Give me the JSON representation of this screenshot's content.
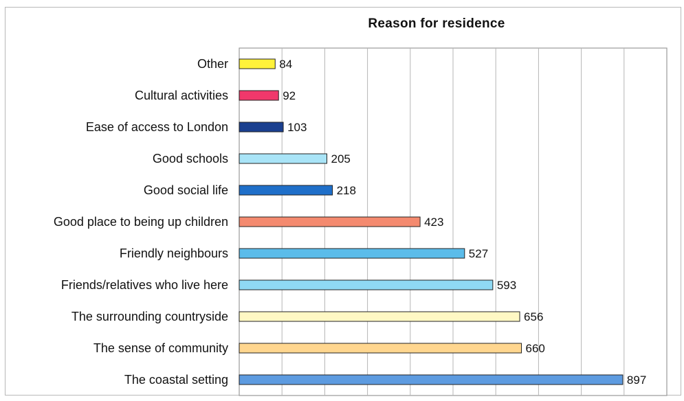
{
  "chart_data": {
    "type": "bar",
    "orientation": "horizontal",
    "title": "Reason for residence",
    "xlabel": "",
    "ylabel": "",
    "xlim": [
      0,
      1000
    ],
    "grid": true,
    "legend": "none",
    "categories": [
      "Other",
      "Cultural activities",
      "Ease of access to London",
      "Good schools",
      "Good social life",
      "Good place to being up children",
      "Friendly neighbours",
      "Friends/relatives who live here",
      "The surrounding countryside",
      "The sense of community",
      "The coastal setting"
    ],
    "values": [
      84,
      92,
      103,
      205,
      218,
      423,
      527,
      593,
      656,
      660,
      897
    ],
    "colors": [
      "#fff23a",
      "#f0386b",
      "#1a3f8f",
      "#a9e4f7",
      "#1f6fc9",
      "#f48a6f",
      "#5bbcea",
      "#8fd9f4",
      "#fff8c4",
      "#ffd68f",
      "#5d9be0"
    ]
  }
}
